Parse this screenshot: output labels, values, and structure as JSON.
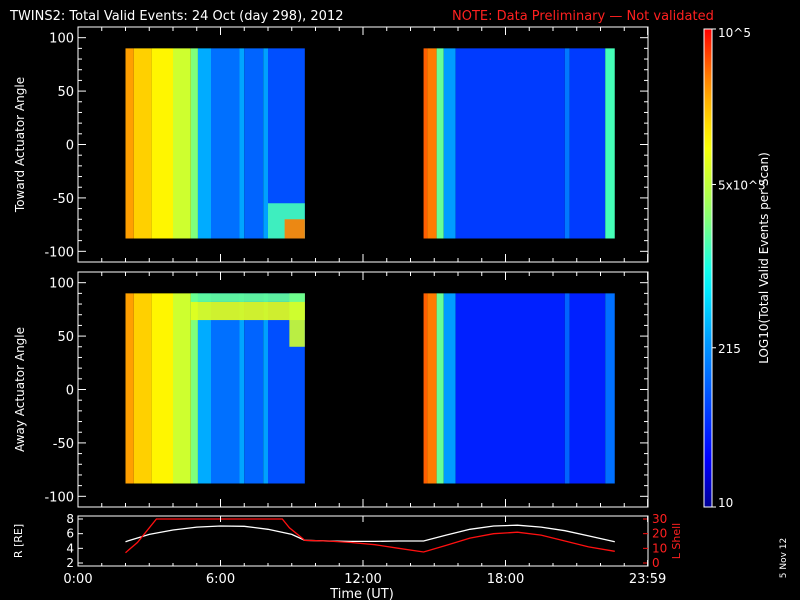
{
  "title": {
    "main": "TWINS2: Total Valid Events: 24 Oct (day 298), 2012",
    "note": "NOTE: Data Preliminary — Not validated"
  },
  "side_label": "5 Nov 12",
  "colors": {
    "background": "#000000",
    "axes": "#ffffff",
    "note": "#ff2020",
    "lshell": "#ff1010",
    "radius": "#ffffff"
  },
  "colorbar": {
    "label": "LOG10(Total Valid Events per Scan)",
    "tick_labels": [
      "10",
      "215",
      "5x10^3",
      "10^5"
    ],
    "tick_values": [
      10,
      215,
      5000,
      100000
    ],
    "range": [
      10,
      100000
    ],
    "scale": "log"
  },
  "chart_data": [
    {
      "type": "heatmap",
      "title": "",
      "ylabel": "Toward Actuator Angle",
      "ylim": [
        -110,
        110
      ],
      "yticks": [
        -100,
        -50,
        0,
        50,
        100
      ],
      "xlim_hours": [
        0,
        24
      ],
      "angle_range": [
        -88,
        90
      ],
      "segments": [
        {
          "start": 2.0,
          "end": 9.55,
          "bands": [
            {
              "from": 2.0,
              "to": 2.35,
              "value": 30000
            },
            {
              "from": 2.35,
              "to": 3.1,
              "value": 18000
            },
            {
              "from": 3.1,
              "to": 4.0,
              "value": 12000
            },
            {
              "from": 4.0,
              "to": 4.75,
              "value": 6000
            },
            {
              "from": 4.75,
              "to": 5.05,
              "value": 2500
            },
            {
              "from": 5.05,
              "to": 5.6,
              "value": 300
            },
            {
              "from": 5.6,
              "to": 6.8,
              "value": 130
            },
            {
              "from": 6.8,
              "to": 7.0,
              "value": 280
            },
            {
              "from": 7.0,
              "to": 7.8,
              "value": 110
            },
            {
              "from": 7.8,
              "to": 8.0,
              "value": 260
            },
            {
              "from": 8.0,
              "to": 9.55,
              "value": 80
            }
          ],
          "patches": [
            {
              "t0": 8.0,
              "t1": 9.55,
              "a0": -88,
              "a1": -55,
              "value": 1500
            },
            {
              "t0": 8.7,
              "t1": 9.55,
              "a0": -88,
              "a1": -70,
              "value": 40000
            }
          ]
        },
        {
          "start": 14.55,
          "end": 22.6,
          "bands": [
            {
              "from": 14.55,
              "to": 14.7,
              "value": 50000
            },
            {
              "from": 14.7,
              "to": 15.1,
              "value": 40000
            },
            {
              "from": 15.1,
              "to": 15.4,
              "value": 2000
            },
            {
              "from": 15.4,
              "to": 15.9,
              "value": 250
            },
            {
              "from": 15.9,
              "to": 20.5,
              "value": 60
            },
            {
              "from": 20.5,
              "to": 20.7,
              "value": 150
            },
            {
              "from": 20.7,
              "to": 22.2,
              "value": 60
            },
            {
              "from": 22.2,
              "to": 22.6,
              "value": 1500
            }
          ],
          "patches": []
        }
      ]
    },
    {
      "type": "heatmap",
      "title": "",
      "ylabel": "Away Actuator Angle",
      "ylim": [
        -110,
        110
      ],
      "yticks": [
        -100,
        -50,
        0,
        50,
        100
      ],
      "xlim_hours": [
        0,
        24
      ],
      "angle_range": [
        -88,
        90
      ],
      "segments": [
        {
          "start": 2.0,
          "end": 9.55,
          "bands": [
            {
              "from": 2.0,
              "to": 2.35,
              "value": 30000
            },
            {
              "from": 2.35,
              "to": 3.1,
              "value": 18000
            },
            {
              "from": 3.1,
              "to": 4.0,
              "value": 12000
            },
            {
              "from": 4.0,
              "to": 4.75,
              "value": 6000
            },
            {
              "from": 4.75,
              "to": 5.05,
              "value": 2500
            },
            {
              "from": 5.05,
              "to": 5.6,
              "value": 300
            },
            {
              "from": 5.6,
              "to": 6.8,
              "value": 130
            },
            {
              "from": 6.8,
              "to": 7.0,
              "value": 280
            },
            {
              "from": 7.0,
              "to": 7.8,
              "value": 110
            },
            {
              "from": 7.8,
              "to": 8.0,
              "value": 260
            },
            {
              "from": 8.0,
              "to": 9.55,
              "value": 80
            }
          ],
          "patches": [
            {
              "t0": 4.75,
              "t1": 9.55,
              "a0": 65,
              "a1": 82,
              "value": 8000
            },
            {
              "t0": 8.9,
              "t1": 9.55,
              "a0": 40,
              "a1": 90,
              "value": 6000
            },
            {
              "t0": 4.75,
              "t1": 9.55,
              "a0": 82,
              "a1": 90,
              "value": 2000
            }
          ]
        },
        {
          "start": 14.55,
          "end": 22.6,
          "bands": [
            {
              "from": 14.55,
              "to": 14.7,
              "value": 50000
            },
            {
              "from": 14.7,
              "to": 15.1,
              "value": 40000
            },
            {
              "from": 15.1,
              "to": 15.4,
              "value": 2000
            },
            {
              "from": 15.4,
              "to": 15.9,
              "value": 250
            },
            {
              "from": 15.9,
              "to": 20.5,
              "value": 40
            },
            {
              "from": 20.5,
              "to": 20.7,
              "value": 110
            },
            {
              "from": 20.7,
              "to": 22.2,
              "value": 40
            },
            {
              "from": 22.2,
              "to": 22.6,
              "value": 130
            }
          ],
          "patches": []
        }
      ]
    },
    {
      "type": "line",
      "xlabel": "Time (UT)",
      "xlim_hours": [
        0,
        24
      ],
      "xtick_hours": [
        0,
        6,
        12,
        18,
        23.983
      ],
      "xtick_labels": [
        "0:00",
        "6:00",
        "12:00",
        "18:00",
        "23:59"
      ],
      "left_axis": {
        "label": "R [RE]",
        "ylim": [
          2,
          8
        ],
        "ticks": [
          2,
          4,
          6,
          8
        ]
      },
      "right_axis": {
        "label": "L Shell",
        "ylim": [
          0,
          30
        ],
        "ticks": [
          0,
          10,
          20,
          30
        ]
      },
      "series": [
        {
          "name": "R [RE]",
          "axis": "left",
          "x": [
            2.0,
            3.0,
            4.0,
            5.0,
            6.0,
            7.0,
            8.0,
            9.0,
            9.55,
            10.5,
            11.5,
            12.5,
            13.5,
            14.55,
            15.5,
            16.5,
            17.5,
            18.5,
            19.5,
            20.5,
            21.5,
            22.6
          ],
          "y": [
            4.9,
            5.9,
            6.5,
            6.9,
            7.05,
            7.0,
            6.6,
            5.9,
            5.1,
            5.0,
            4.95,
            4.95,
            5.0,
            5.0,
            5.8,
            6.6,
            7.05,
            7.15,
            6.9,
            6.4,
            5.7,
            4.9
          ]
        },
        {
          "name": "L Shell",
          "axis": "right",
          "x": [
            2.0,
            2.5,
            3.0,
            3.3,
            8.6,
            8.9,
            9.55,
            10.5,
            11.5,
            12.5,
            13.5,
            14.55,
            15.5,
            16.5,
            17.5,
            18.5,
            19.5,
            20.5,
            21.5,
            22.6
          ],
          "y": [
            7.0,
            14.0,
            24.0,
            30.0,
            30.0,
            24.0,
            15.5,
            15.0,
            14.0,
            12.5,
            10.0,
            7.5,
            12.0,
            17.0,
            20.0,
            21.0,
            19.0,
            15.0,
            11.0,
            8.0
          ]
        }
      ]
    }
  ]
}
